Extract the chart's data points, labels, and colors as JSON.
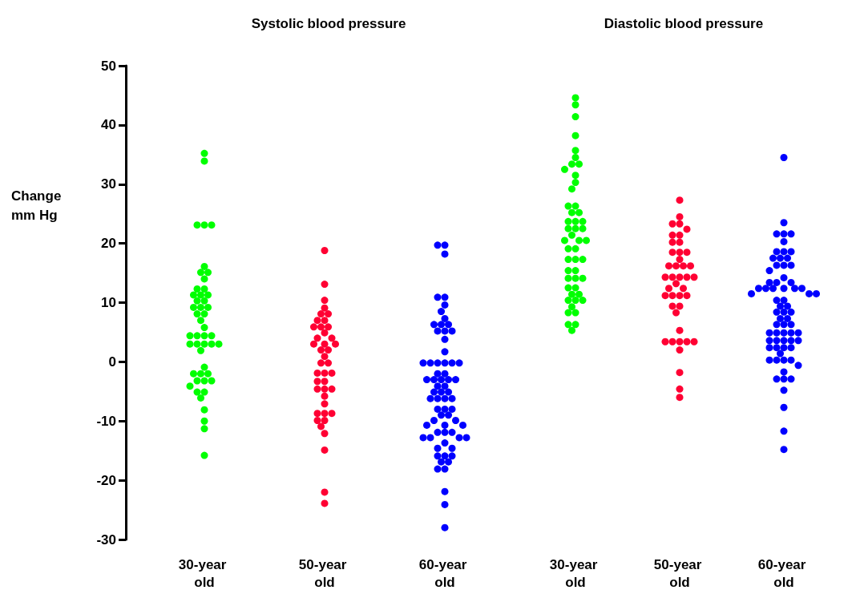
{
  "chart_data": [
    {
      "type": "scatter",
      "title": "Systolic blood pressure",
      "ylabel": "Change mm Hg",
      "categories": [
        "30-year old",
        "50-year old",
        "60-year old"
      ],
      "ylim": [
        -30,
        50
      ],
      "yticks": [
        -30,
        -20,
        -10,
        0,
        10,
        20,
        30,
        40,
        50
      ],
      "grid": false,
      "marker": "circle",
      "series": [
        {
          "color": "#00ff00",
          "x": [
            "30-year old",
            "30-year old",
            "30-year old",
            "30-year old",
            "30-year old",
            "30-year old",
            "30-year old",
            "30-year old",
            "30-year old",
            "30-year old",
            "30-year old",
            "30-year old",
            "30-year old",
            "30-year old",
            "30-year old",
            "30-year old",
            "30-year old",
            "30-year old",
            "30-year old",
            "30-year old",
            "30-year old",
            "30-year old",
            "30-year old",
            "30-year old",
            "30-year old",
            "30-year old",
            "30-year old",
            "30-year old",
            "30-year old",
            "30-year old",
            "30-year old",
            "30-year old",
            "30-year old",
            "30-year old",
            "30-year old",
            "30-year old",
            "30-year old",
            "30-year old",
            "30-year old",
            "30-year old",
            "30-year old",
            "30-year old",
            "30-year old",
            "30-year old",
            "30-year old",
            "30-year old",
            "30-year old",
            "30-year old"
          ],
          "values": [
            35.2,
            33.9,
            23.1,
            23.1,
            23.1,
            16.1,
            15.1,
            15.1,
            14.0,
            12.3,
            12.3,
            11.3,
            11.3,
            11.3,
            10.3,
            10.3,
            9.2,
            9.2,
            9.2,
            8.1,
            8.1,
            7.0,
            5.8,
            4.4,
            4.4,
            4.4,
            4.4,
            3.0,
            3.0,
            3.0,
            3.0,
            3.0,
            1.9,
            -0.9,
            -2.0,
            -2.0,
            -2.0,
            -3.2,
            -3.2,
            -3.2,
            -4.1,
            -5.1,
            -5.1,
            -6.1,
            -8.1,
            -10.0,
            -11.3,
            -15.8
          ]
        },
        {
          "color": "#ff0033",
          "x": [
            "50-year old",
            "50-year old",
            "50-year old",
            "50-year old",
            "50-year old",
            "50-year old",
            "50-year old",
            "50-year old",
            "50-year old",
            "50-year old",
            "50-year old",
            "50-year old",
            "50-year old",
            "50-year old",
            "50-year old",
            "50-year old",
            "50-year old",
            "50-year old",
            "50-year old",
            "50-year old",
            "50-year old",
            "50-year old",
            "50-year old",
            "50-year old",
            "50-year old",
            "50-year old",
            "50-year old",
            "50-year old",
            "50-year old",
            "50-year old",
            "50-year old",
            "50-year old",
            "50-year old",
            "50-year old",
            "50-year old",
            "50-year old",
            "50-year old",
            "50-year old",
            "50-year old",
            "50-year old",
            "50-year old",
            "50-year old"
          ],
          "values": [
            18.8,
            13.1,
            10.4,
            9.1,
            8.1,
            8.1,
            7.0,
            7.0,
            5.9,
            5.9,
            5.9,
            4.9,
            4.0,
            4.0,
            3.0,
            3.0,
            3.0,
            2.0,
            2.0,
            0.9,
            -0.2,
            -0.2,
            -1.9,
            -1.9,
            -1.9,
            -3.3,
            -3.3,
            -4.6,
            -4.6,
            -4.6,
            -5.8,
            -7.1,
            -8.7,
            -8.7,
            -8.7,
            -9.9,
            -9.9,
            -10.9,
            -12.1,
            -14.9,
            -22.0,
            -23.9
          ]
        },
        {
          "color": "#0000ff",
          "x": [
            "60-year old",
            "60-year old",
            "60-year old",
            "60-year old",
            "60-year old",
            "60-year old",
            "60-year old",
            "60-year old",
            "60-year old",
            "60-year old",
            "60-year old",
            "60-year old",
            "60-year old",
            "60-year old",
            "60-year old",
            "60-year old",
            "60-year old",
            "60-year old",
            "60-year old",
            "60-year old",
            "60-year old",
            "60-year old",
            "60-year old",
            "60-year old",
            "60-year old",
            "60-year old",
            "60-year old",
            "60-year old",
            "60-year old",
            "60-year old",
            "60-year old",
            "60-year old",
            "60-year old",
            "60-year old",
            "60-year old",
            "60-year old",
            "60-year old",
            "60-year old",
            "60-year old",
            "60-year old",
            "60-year old",
            "60-year old",
            "60-year old",
            "60-year old",
            "60-year old",
            "60-year old",
            "60-year old",
            "60-year old",
            "60-year old",
            "60-year old",
            "60-year old",
            "60-year old",
            "60-year old",
            "60-year old",
            "60-year old",
            "60-year old",
            "60-year old",
            "60-year old",
            "60-year old",
            "60-year old",
            "60-year old",
            "60-year old",
            "60-year old",
            "60-year old",
            "60-year old",
            "60-year old",
            "60-year old",
            "60-year old"
          ],
          "values": [
            19.7,
            19.7,
            18.2,
            10.9,
            10.9,
            9.6,
            8.5,
            7.3,
            6.3,
            6.3,
            6.3,
            5.2,
            5.2,
            5.2,
            3.8,
            1.7,
            -0.2,
            -0.2,
            -0.2,
            -0.2,
            -0.2,
            -0.2,
            -2.0,
            -2.0,
            -3.0,
            -3.0,
            -3.0,
            -3.0,
            -3.0,
            -4.1,
            -4.1,
            -5.1,
            -5.1,
            -5.1,
            -6.2,
            -6.2,
            -6.2,
            -6.2,
            -8.0,
            -8.0,
            -8.0,
            -9.0,
            -9.0,
            -9.9,
            -9.9,
            -10.7,
            -10.7,
            -10.7,
            -11.9,
            -11.9,
            -11.9,
            -12.8,
            -12.8,
            -12.8,
            -12.8,
            -13.7,
            -14.6,
            -14.6,
            -15.9,
            -15.9,
            -15.9,
            -16.9,
            -16.9,
            -18.1,
            -18.1,
            -21.9,
            -24.1,
            -28.0
          ]
        }
      ]
    },
    {
      "type": "scatter",
      "title": "Diastolic blood pressure",
      "categories": [
        "30-year old",
        "50-year old",
        "60-year old"
      ],
      "ylim": [
        -30,
        50
      ],
      "yticks": [
        -30,
        -20,
        -10,
        0,
        10,
        20,
        30,
        40,
        50
      ],
      "tick_labels": "x",
      "grid": false,
      "marker": "circle",
      "series": [
        {
          "color": "#00ff00",
          "x": [
            "30-year old",
            "30-year old",
            "30-year old",
            "30-year old",
            "30-year old",
            "30-year old",
            "30-year old",
            "30-year old",
            "30-year old",
            "30-year old",
            "30-year old",
            "30-year old",
            "30-year old",
            "30-year old",
            "30-year old",
            "30-year old",
            "30-year old",
            "30-year old",
            "30-year old",
            "30-year old",
            "30-year old",
            "30-year old",
            "30-year old",
            "30-year old",
            "30-year old",
            "30-year old",
            "30-year old",
            "30-year old",
            "30-year old",
            "30-year old",
            "30-year old",
            "30-year old",
            "30-year old",
            "30-year old",
            "30-year old",
            "30-year old",
            "30-year old",
            "30-year old",
            "30-year old",
            "30-year old",
            "30-year old",
            "30-year old",
            "30-year old",
            "30-year old",
            "30-year old",
            "30-year old",
            "30-year old",
            "30-year old",
            "30-year old"
          ],
          "values": [
            44.6,
            43.4,
            41.4,
            38.2,
            35.7,
            34.5,
            33.4,
            33.4,
            32.5,
            31.5,
            30.3,
            29.2,
            26.3,
            26.3,
            25.2,
            25.2,
            23.7,
            23.7,
            23.7,
            22.5,
            22.5,
            22.5,
            21.4,
            20.5,
            20.5,
            20.5,
            19.1,
            19.1,
            17.3,
            17.3,
            17.3,
            15.4,
            15.4,
            14.1,
            14.1,
            14.1,
            12.5,
            12.5,
            11.4,
            11.4,
            10.4,
            10.4,
            10.4,
            9.3,
            8.3,
            8.3,
            6.3,
            6.3,
            5.3
          ]
        },
        {
          "color": "#ff0033",
          "x": [
            "50-year old",
            "50-year old",
            "50-year old",
            "50-year old",
            "50-year old",
            "50-year old",
            "50-year old",
            "50-year old",
            "50-year old",
            "50-year old",
            "50-year old",
            "50-year old",
            "50-year old",
            "50-year old",
            "50-year old",
            "50-year old",
            "50-year old",
            "50-year old",
            "50-year old",
            "50-year old",
            "50-year old",
            "50-year old",
            "50-year old",
            "50-year old",
            "50-year old",
            "50-year old",
            "50-year old",
            "50-year old",
            "50-year old",
            "50-year old",
            "50-year old",
            "50-year old",
            "50-year old",
            "50-year old",
            "50-year old",
            "50-year old",
            "50-year old",
            "50-year old",
            "50-year old",
            "50-year old",
            "50-year old",
            "50-year old"
          ],
          "values": [
            27.3,
            24.5,
            23.3,
            23.3,
            22.4,
            21.4,
            21.4,
            20.2,
            20.2,
            18.5,
            18.5,
            18.5,
            17.3,
            16.2,
            16.2,
            16.2,
            16.2,
            14.3,
            14.3,
            14.3,
            14.3,
            14.3,
            13.2,
            12.4,
            12.4,
            11.2,
            11.2,
            11.2,
            11.2,
            9.4,
            9.4,
            8.3,
            5.3,
            3.4,
            3.4,
            3.4,
            3.4,
            3.4,
            2.0,
            -1.8,
            -4.6,
            -6.0
          ]
        },
        {
          "color": "#0000ff",
          "x": [
            "60-year old",
            "60-year old",
            "60-year old",
            "60-year old",
            "60-year old",
            "60-year old",
            "60-year old",
            "60-year old",
            "60-year old",
            "60-year old",
            "60-year old",
            "60-year old",
            "60-year old",
            "60-year old",
            "60-year old",
            "60-year old",
            "60-year old",
            "60-year old",
            "60-year old",
            "60-year old",
            "60-year old",
            "60-year old",
            "60-year old",
            "60-year old",
            "60-year old",
            "60-year old",
            "60-year old",
            "60-year old",
            "60-year old",
            "60-year old",
            "60-year old",
            "60-year old",
            "60-year old",
            "60-year old",
            "60-year old",
            "60-year old",
            "60-year old",
            "60-year old",
            "60-year old",
            "60-year old",
            "60-year old",
            "60-year old",
            "60-year old",
            "60-year old",
            "60-year old",
            "60-year old",
            "60-year old",
            "60-year old",
            "60-year old",
            "60-year old",
            "60-year old",
            "60-year old",
            "60-year old",
            "60-year old",
            "60-year old",
            "60-year old",
            "60-year old",
            "60-year old",
            "60-year old",
            "60-year old",
            "60-year old",
            "60-year old",
            "60-year old",
            "60-year old",
            "60-year old",
            "60-year old",
            "60-year old",
            "60-year old",
            "60-year old"
          ],
          "values": [
            34.5,
            23.5,
            21.6,
            21.6,
            21.6,
            20.3,
            18.6,
            18.6,
            18.6,
            17.5,
            17.5,
            17.5,
            16.3,
            16.3,
            16.3,
            15.4,
            14.2,
            13.4,
            13.4,
            13.4,
            12.4,
            12.4,
            12.4,
            12.4,
            12.4,
            12.4,
            11.5,
            11.5,
            11.5,
            10.4,
            10.4,
            9.4,
            9.4,
            8.4,
            8.4,
            8.4,
            7.3,
            7.3,
            6.3,
            6.3,
            6.3,
            4.9,
            4.9,
            4.9,
            4.9,
            4.9,
            3.6,
            3.6,
            3.6,
            3.6,
            3.6,
            2.4,
            2.4,
            2.4,
            2.4,
            1.4,
            0.3,
            0.3,
            0.3,
            0.3,
            -0.6,
            -1.7,
            -2.9,
            -2.9,
            -2.9,
            -4.8,
            -7.7,
            -11.7,
            -14.8
          ]
        }
      ]
    }
  ]
}
